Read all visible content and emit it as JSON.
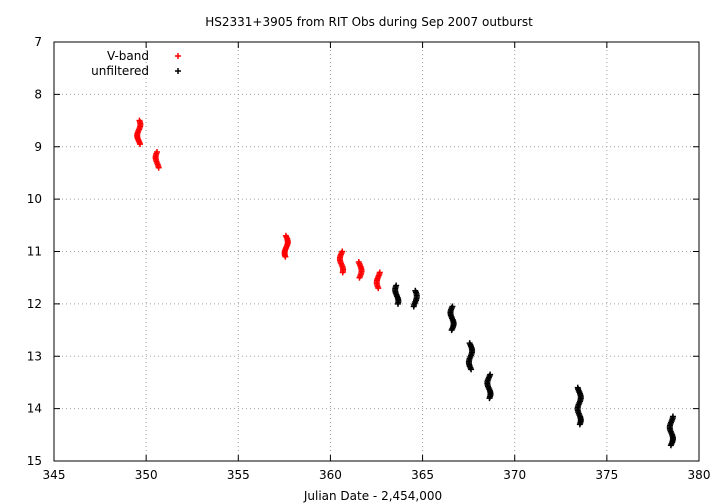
{
  "chart_data": {
    "type": "scatter",
    "title": "HS2331+3905 from RIT Obs during Sep 2007 outburst",
    "xlabel": "Julian Date - 2,454,000",
    "ylabel": "",
    "xlim": [
      345,
      380
    ],
    "ylim": [
      15,
      7
    ],
    "y_inverted": true,
    "x_ticks": [
      345,
      350,
      355,
      360,
      365,
      370,
      375,
      380
    ],
    "y_ticks": [
      7,
      8,
      9,
      10,
      11,
      12,
      13,
      14,
      15
    ],
    "grid": true,
    "legend_position": "top-left",
    "series": [
      {
        "name": "V-band",
        "color": "#ff0000",
        "marker": "plus",
        "clusters": [
          {
            "x": 349.6,
            "y_min": 8.5,
            "y_max": 8.95
          },
          {
            "x": 350.6,
            "y_min": 9.1,
            "y_max": 9.4
          },
          {
            "x": 357.6,
            "y_min": 10.7,
            "y_max": 11.1
          },
          {
            "x": 360.6,
            "y_min": 11.0,
            "y_max": 11.4
          },
          {
            "x": 361.6,
            "y_min": 11.2,
            "y_max": 11.5
          },
          {
            "x": 362.6,
            "y_min": 11.4,
            "y_max": 11.7
          }
        ]
      },
      {
        "name": "unfiltered",
        "color": "#000000",
        "marker": "plus",
        "clusters": [
          {
            "x": 363.6,
            "y_min": 11.65,
            "y_max": 12.0
          },
          {
            "x": 364.6,
            "y_min": 11.75,
            "y_max": 12.05
          },
          {
            "x": 366.6,
            "y_min": 12.05,
            "y_max": 12.5
          },
          {
            "x": 367.6,
            "y_min": 12.75,
            "y_max": 13.25
          },
          {
            "x": 368.6,
            "y_min": 13.35,
            "y_max": 13.8
          },
          {
            "x": 373.5,
            "y_min": 13.6,
            "y_max": 14.3
          },
          {
            "x": 378.5,
            "y_min": 14.15,
            "y_max": 14.7
          }
        ]
      }
    ]
  }
}
